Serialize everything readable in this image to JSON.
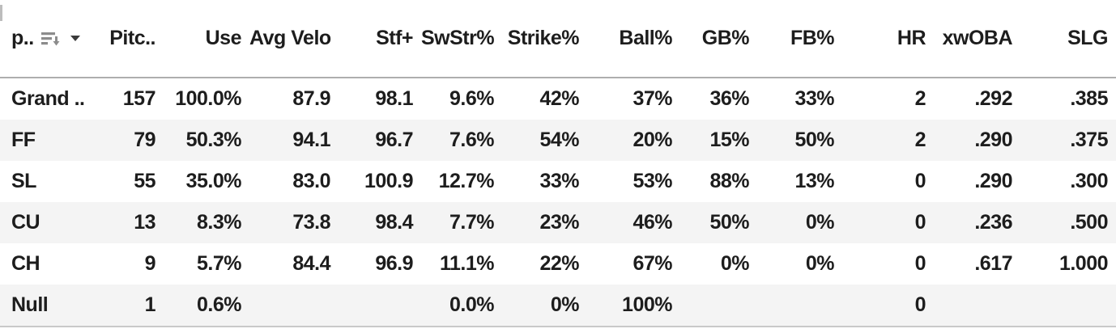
{
  "table": {
    "columns": [
      {
        "key": "pitch",
        "label": "p.."
      },
      {
        "key": "pitches",
        "label": "Pitc.."
      },
      {
        "key": "use",
        "label": "Use"
      },
      {
        "key": "avg_velo",
        "label": "Avg Velo"
      },
      {
        "key": "stf_plus",
        "label": "Stf+"
      },
      {
        "key": "swstr_pct",
        "label": "SwStr%"
      },
      {
        "key": "strike_pct",
        "label": "Strike%"
      },
      {
        "key": "ball_pct",
        "label": "Ball%"
      },
      {
        "key": "gb_pct",
        "label": "GB%"
      },
      {
        "key": "fb_pct",
        "label": "FB%"
      },
      {
        "key": "hr",
        "label": "HR"
      },
      {
        "key": "xwoba",
        "label": "xwOBA"
      },
      {
        "key": "slg",
        "label": "SLG"
      }
    ],
    "rows": [
      [
        "Grand ..",
        "157",
        "100.0%",
        "87.9",
        "98.1",
        "9.6%",
        "42%",
        "37%",
        "36%",
        "33%",
        "2",
        ".292",
        ".385"
      ],
      [
        "FF",
        "79",
        "50.3%",
        "94.1",
        "96.7",
        "7.6%",
        "54%",
        "20%",
        "15%",
        "50%",
        "2",
        ".290",
        ".375"
      ],
      [
        "SL",
        "55",
        "35.0%",
        "83.0",
        "100.9",
        "12.7%",
        "33%",
        "53%",
        "88%",
        "13%",
        "0",
        ".290",
        ".300"
      ],
      [
        "CU",
        "13",
        "8.3%",
        "73.8",
        "98.4",
        "7.7%",
        "23%",
        "46%",
        "50%",
        "0%",
        "0",
        ".236",
        ".500"
      ],
      [
        "CH",
        "9",
        "5.7%",
        "84.4",
        "96.9",
        "11.1%",
        "22%",
        "67%",
        "0%",
        "0%",
        "0",
        ".617",
        "1.000"
      ],
      [
        "Null",
        "1",
        "0.6%",
        "",
        "",
        "0.0%",
        "0%",
        "100%",
        "",
        "",
        "0",
        "",
        ""
      ]
    ],
    "icons": {
      "sort": "sort-descending-icon",
      "caret": "dropdown-caret-icon"
    },
    "colors": {
      "text": "#1d1d1d",
      "zebra_row": "#f4f4f4",
      "header_border": "#aeaeae",
      "bottom_border": "#c9c9c9",
      "icon_gray": "#8c8c8c",
      "caret_dark": "#3a3a3a"
    }
  }
}
